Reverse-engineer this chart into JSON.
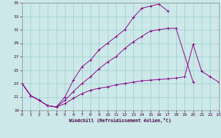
{
  "xlabel": "Windchill (Refroidissement éolien,°C)",
  "bg_color": "#cce8e8",
  "grid_color": "#99cccc",
  "line_color": "#880088",
  "xlim": [
    0,
    23
  ],
  "ylim": [
    19,
    35
  ],
  "yticks": [
    19,
    21,
    23,
    25,
    27,
    29,
    31,
    33,
    35
  ],
  "xticks": [
    0,
    1,
    2,
    3,
    4,
    5,
    6,
    7,
    8,
    9,
    10,
    11,
    12,
    13,
    14,
    15,
    16,
    17,
    18,
    19,
    20,
    21,
    22,
    23
  ],
  "series": [
    {
      "x": [
        0,
        1,
        2,
        3,
        4,
        5,
        6,
        7,
        8,
        9,
        10,
        11,
        12,
        13,
        14,
        15,
        16,
        17
      ],
      "y": [
        23.0,
        21.2,
        20.5,
        19.7,
        19.5,
        21.0,
        23.5,
        25.5,
        26.5,
        28.0,
        29.0,
        30.0,
        31.0,
        32.8,
        34.2,
        34.5,
        34.8,
        33.8
      ]
    },
    {
      "x": [
        0,
        1,
        2,
        3,
        4,
        5,
        6,
        7,
        8,
        9,
        10,
        11,
        12,
        13,
        14,
        15,
        16,
        17,
        18,
        20
      ],
      "y": [
        23.0,
        21.2,
        20.5,
        19.7,
        19.5,
        20.5,
        21.8,
        23.0,
        24.0,
        25.2,
        26.2,
        27.0,
        28.2,
        29.2,
        30.0,
        30.8,
        31.0,
        31.2,
        31.2,
        23.2
      ]
    },
    {
      "x": [
        0,
        1,
        2,
        3,
        4,
        5,
        6,
        7,
        8,
        9,
        10,
        11,
        12,
        13,
        14,
        15,
        16,
        17,
        18,
        19,
        20,
        21,
        22,
        23
      ],
      "y": [
        23.0,
        21.2,
        20.5,
        19.7,
        19.5,
        20.0,
        20.8,
        21.5,
        22.0,
        22.3,
        22.5,
        22.8,
        23.0,
        23.2,
        23.4,
        23.5,
        23.6,
        23.7,
        23.8,
        24.0,
        28.8,
        24.8,
        24.0,
        23.2
      ]
    }
  ]
}
